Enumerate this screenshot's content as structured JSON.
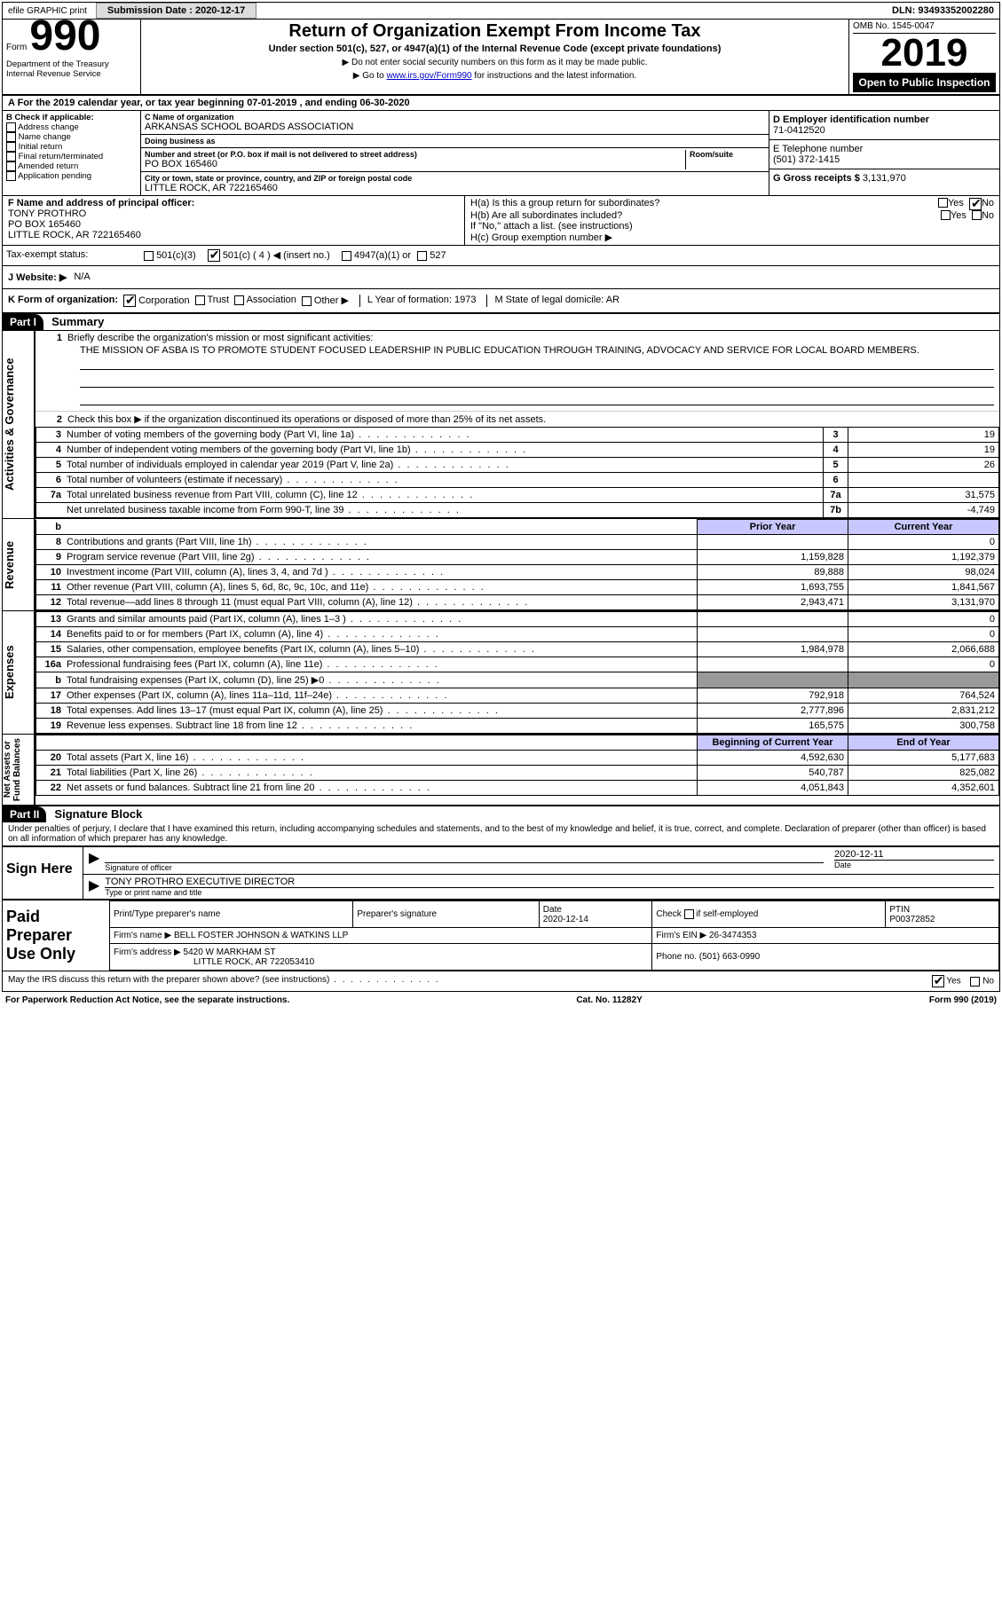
{
  "topbar": {
    "efile": "efile GRAPHIC print",
    "submission_label": "Submission Date : ",
    "submission_value": "2020-12-17",
    "dln": "DLN: 93493352002280"
  },
  "header": {
    "form_word": "Form",
    "form_num": "990",
    "dept": "Department of the Treasury\nInternal Revenue Service",
    "title": "Return of Organization Exempt From Income Tax",
    "subtitle": "Under section 501(c), 527, or 4947(a)(1) of the Internal Revenue Code (except private foundations)",
    "note1": "▶ Do not enter social security numbers on this form as it may be made public.",
    "note2_pre": "▶ Go to ",
    "note2_link": "www.irs.gov/Form990",
    "note2_post": " for instructions and the latest information.",
    "omb": "OMB No. 1545-0047",
    "year": "2019",
    "open": "Open to Public Inspection"
  },
  "rowA": "A For the 2019 calendar year, or tax year beginning 07-01-2019    , and ending 06-30-2020",
  "boxB": {
    "label": "B Check if applicable:",
    "items": [
      "Address change",
      "Name change",
      "Initial return",
      "Final return/terminated",
      "Amended return",
      "Application pending"
    ]
  },
  "boxC": {
    "name_lbl": "C Name of organization",
    "name": "ARKANSAS SCHOOL BOARDS ASSOCIATION",
    "dba_lbl": "Doing business as",
    "addr_lbl": "Number and street (or P.O. box if mail is not delivered to street address)",
    "room_lbl": "Room/suite",
    "addr": "PO BOX 165460",
    "city_lbl": "City or town, state or province, country, and ZIP or foreign postal code",
    "city": "LITTLE ROCK, AR   722165460"
  },
  "boxD": {
    "lbl": "D Employer identification number",
    "val": "71-0412520"
  },
  "boxE": {
    "lbl": "E Telephone number",
    "val": "(501) 372-1415"
  },
  "boxG": {
    "lbl": "G Gross receipts $ ",
    "val": "3,131,970"
  },
  "boxF": {
    "lbl": "F  Name and address of principal officer:",
    "name": "TONY PROTHRO",
    "addr1": "PO BOX 165460",
    "addr2": "LITTLE ROCK, AR   722165460"
  },
  "boxH": {
    "a": "H(a)  Is this a group return for subordinates?",
    "b": "H(b)  Are all subordinates included?",
    "note": "If \"No,\" attach a list. (see instructions)",
    "c": "H(c)  Group exemption number ▶"
  },
  "taxExempt": {
    "lbl": "Tax-exempt status:",
    "c3": "501(c)(3)",
    "c4": "501(c) ( 4 ) ◀ (insert no.)",
    "a1": "4947(a)(1) or",
    "s527": "527"
  },
  "rowJ": {
    "lbl": "J   Website: ▶",
    "val": "N/A"
  },
  "rowK": {
    "lbl": "K Form of organization:",
    "opts": [
      "Corporation",
      "Trust",
      "Association",
      "Other ▶"
    ],
    "L": "L Year of formation: 1973",
    "M": "M State of legal domicile: AR"
  },
  "part1": {
    "num": "Part I",
    "title": "Summary"
  },
  "activities": {
    "q1": "Briefly describe the organization's mission or most significant activities:",
    "mission": "THE MISSION OF ASBA IS TO PROMOTE STUDENT FOCUSED LEADERSHIP IN PUBLIC EDUCATION THROUGH TRAINING, ADVOCACY AND SERVICE FOR LOCAL BOARD MEMBERS.",
    "q2": "Check this box ▶     if the organization discontinued its operations or disposed of more than 25% of its net assets.",
    "rows": [
      {
        "n": "3",
        "d": "Number of voting members of the governing body (Part VI, line 1a)",
        "b": "3",
        "v": "19"
      },
      {
        "n": "4",
        "d": "Number of independent voting members of the governing body (Part VI, line 1b)",
        "b": "4",
        "v": "19"
      },
      {
        "n": "5",
        "d": "Total number of individuals employed in calendar year 2019 (Part V, line 2a)",
        "b": "5",
        "v": "26"
      },
      {
        "n": "6",
        "d": "Total number of volunteers (estimate if necessary)",
        "b": "6",
        "v": ""
      },
      {
        "n": "7a",
        "d": "Total unrelated business revenue from Part VIII, column (C), line 12",
        "b": "7a",
        "v": "31,575"
      },
      {
        "n": "",
        "d": "Net unrelated business taxable income from Form 990-T, line 39",
        "b": "7b",
        "v": "-4,749"
      }
    ]
  },
  "revenue": {
    "prior_hdr": "Prior Year",
    "curr_hdr": "Current Year",
    "rows": [
      {
        "n": "8",
        "d": "Contributions and grants (Part VIII, line 1h)",
        "p": "",
        "c": "0"
      },
      {
        "n": "9",
        "d": "Program service revenue (Part VIII, line 2g)",
        "p": "1,159,828",
        "c": "1,192,379"
      },
      {
        "n": "10",
        "d": "Investment income (Part VIII, column (A), lines 3, 4, and 7d )",
        "p": "89,888",
        "c": "98,024"
      },
      {
        "n": "11",
        "d": "Other revenue (Part VIII, column (A), lines 5, 6d, 8c, 9c, 10c, and 11e)",
        "p": "1,693,755",
        "c": "1,841,567"
      },
      {
        "n": "12",
        "d": "Total revenue—add lines 8 through 11 (must equal Part VIII, column (A), line 12)",
        "p": "2,943,471",
        "c": "3,131,970"
      }
    ]
  },
  "expenses": {
    "rows": [
      {
        "n": "13",
        "d": "Grants and similar amounts paid (Part IX, column (A), lines 1–3 )",
        "p": "",
        "c": "0"
      },
      {
        "n": "14",
        "d": "Benefits paid to or for members (Part IX, column (A), line 4)",
        "p": "",
        "c": "0"
      },
      {
        "n": "15",
        "d": "Salaries, other compensation, employee benefits (Part IX, column (A), lines 5–10)",
        "p": "1,984,978",
        "c": "2,066,688"
      },
      {
        "n": "16a",
        "d": "Professional fundraising fees (Part IX, column (A), line 11e)",
        "p": "",
        "c": "0"
      },
      {
        "n": "b",
        "d": "Total fundraising expenses (Part IX, column (D), line 25) ▶0",
        "p": "SHADE",
        "c": "SHADE"
      },
      {
        "n": "17",
        "d": "Other expenses (Part IX, column (A), lines 11a–11d, 11f–24e)",
        "p": "792,918",
        "c": "764,524"
      },
      {
        "n": "18",
        "d": "Total expenses. Add lines 13–17 (must equal Part IX, column (A), line 25)",
        "p": "2,777,896",
        "c": "2,831,212"
      },
      {
        "n": "19",
        "d": "Revenue less expenses. Subtract line 18 from line 12",
        "p": "165,575",
        "c": "300,758"
      }
    ]
  },
  "netassets": {
    "beg_hdr": "Beginning of Current Year",
    "end_hdr": "End of Year",
    "rows": [
      {
        "n": "20",
        "d": "Total assets (Part X, line 16)",
        "p": "4,592,630",
        "c": "5,177,683"
      },
      {
        "n": "21",
        "d": "Total liabilities (Part X, line 26)",
        "p": "540,787",
        "c": "825,082"
      },
      {
        "n": "22",
        "d": "Net assets or fund balances. Subtract line 21 from line 20",
        "p": "4,051,843",
        "c": "4,352,601"
      }
    ]
  },
  "part2": {
    "num": "Part II",
    "title": "Signature Block"
  },
  "declaration": "Under penalties of perjury, I declare that I have examined this return, including accompanying schedules and statements, and to the best of my knowledge and belief, it is true, correct, and complete. Declaration of preparer (other than officer) is based on all information of which preparer has any knowledge.",
  "sign": {
    "here": "Sign Here",
    "sig_lbl": "Signature of officer",
    "date_lbl": "Date",
    "date_val": "2020-12-11",
    "name": "TONY PROTHRO  EXECUTIVE DIRECTOR",
    "name_lbl": "Type or print name and title"
  },
  "prep": {
    "label": "Paid Preparer Use Only",
    "h1": "Print/Type preparer's name",
    "h2": "Preparer's signature",
    "h3": "Date",
    "date": "2020-12-14",
    "h4": "Check      if self-employed",
    "h5": "PTIN",
    "ptin": "P00372852",
    "firm_lbl": "Firm's name      ▶",
    "firm": "BELL FOSTER JOHNSON & WATKINS LLP",
    "ein_lbl": "Firm's EIN ▶",
    "ein": "26-3474353",
    "addr_lbl": "Firm's address ▶",
    "addr1": "5420 W MARKHAM ST",
    "addr2": "LITTLE ROCK, AR   722053410",
    "phone_lbl": "Phone no.",
    "phone": "(501) 663-0990"
  },
  "bottom": {
    "q": "May the IRS discuss this return with the preparer shown above? (see instructions)",
    "yes": "Yes",
    "no": "No"
  },
  "footer": {
    "left": "For Paperwork Reduction Act Notice, see the separate instructions.",
    "mid": "Cat. No. 11282Y",
    "right": "Form 990 (2019)"
  },
  "yesno": {
    "yes": "Yes",
    "no": "No"
  }
}
